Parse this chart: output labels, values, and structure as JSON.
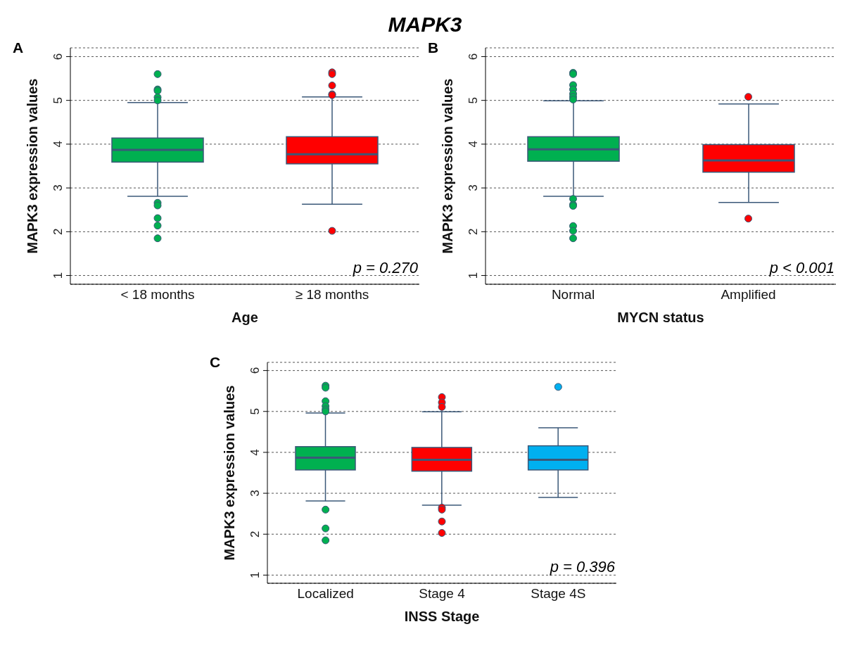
{
  "chart_data": [
    {
      "type": "box",
      "title": "MAPK3",
      "xlabel": "Age",
      "ylabel": "MAPK3 expression values",
      "categories": [
        "< 18 months",
        "≥ 18 months"
      ],
      "colors": [
        "#00b050",
        "#ff0000"
      ],
      "boxes": [
        {
          "low": 2.81,
          "q1": 3.59,
          "median": 3.87,
          "q3": 4.14,
          "high": 4.95,
          "outliers": [
            5.6,
            5.25,
            5.22,
            5.07,
            5.0,
            2.66,
            2.6,
            2.31,
            2.14,
            1.85
          ]
        },
        {
          "low": 2.63,
          "q1": 3.55,
          "median": 3.77,
          "q3": 4.17,
          "high": 5.08,
          "outliers": [
            5.64,
            5.6,
            5.34,
            5.14,
            5.12,
            2.02
          ]
        }
      ],
      "ylim": [
        0.8,
        6.2
      ],
      "yticks": [
        1,
        2,
        3,
        4,
        5,
        6
      ],
      "grid": "y",
      "annotations": [
        "A",
        "p = 0.270"
      ]
    },
    {
      "type": "box",
      "xlabel": "MYCN status",
      "ylabel": "MAPK3 expression values",
      "categories": [
        "Normal",
        "Amplified"
      ],
      "colors": [
        "#00b050",
        "#ff0000"
      ],
      "boxes": [
        {
          "low": 2.81,
          "q1": 3.61,
          "median": 3.88,
          "q3": 4.17,
          "high": 4.99,
          "outliers": [
            5.63,
            5.6,
            5.35,
            5.25,
            5.15,
            5.08,
            5.02,
            2.75,
            2.62,
            2.59,
            2.13,
            2.02,
            1.85
          ]
        },
        {
          "low": 2.67,
          "q1": 3.36,
          "median": 3.63,
          "q3": 3.99,
          "high": 4.92,
          "outliers": [
            5.08,
            2.3
          ]
        }
      ],
      "ylim": [
        0.8,
        6.2
      ],
      "yticks": [
        1,
        2,
        3,
        4,
        5,
        6
      ],
      "grid": "y",
      "annotations": [
        "B",
        "p < 0.001"
      ]
    },
    {
      "type": "box",
      "xlabel": "INSS Stage",
      "ylabel": "MAPK3 expression values",
      "categories": [
        "Localized",
        "Stage 4",
        "Stage 4S"
      ],
      "colors": [
        "#00b050",
        "#ff0000",
        "#00b0f0"
      ],
      "boxes": [
        {
          "low": 2.81,
          "q1": 3.57,
          "median": 3.87,
          "q3": 4.14,
          "high": 4.96,
          "outliers": [
            5.63,
            5.58,
            5.25,
            5.13,
            5.05,
            5.0,
            2.6,
            2.14,
            1.85
          ]
        },
        {
          "low": 2.71,
          "q1": 3.54,
          "median": 3.82,
          "q3": 4.12,
          "high": 4.99,
          "outliers": [
            5.35,
            5.22,
            5.11,
            2.65,
            2.6,
            2.31,
            2.03
          ]
        },
        {
          "low": 2.9,
          "q1": 3.57,
          "median": 3.82,
          "q3": 4.16,
          "high": 4.6,
          "outliers": [
            5.6
          ]
        }
      ],
      "ylim": [
        0.8,
        6.2
      ],
      "yticks": [
        1,
        2,
        3,
        4,
        5,
        6
      ],
      "grid": "y",
      "annotations": [
        "C",
        "p = 0.396"
      ]
    }
  ]
}
